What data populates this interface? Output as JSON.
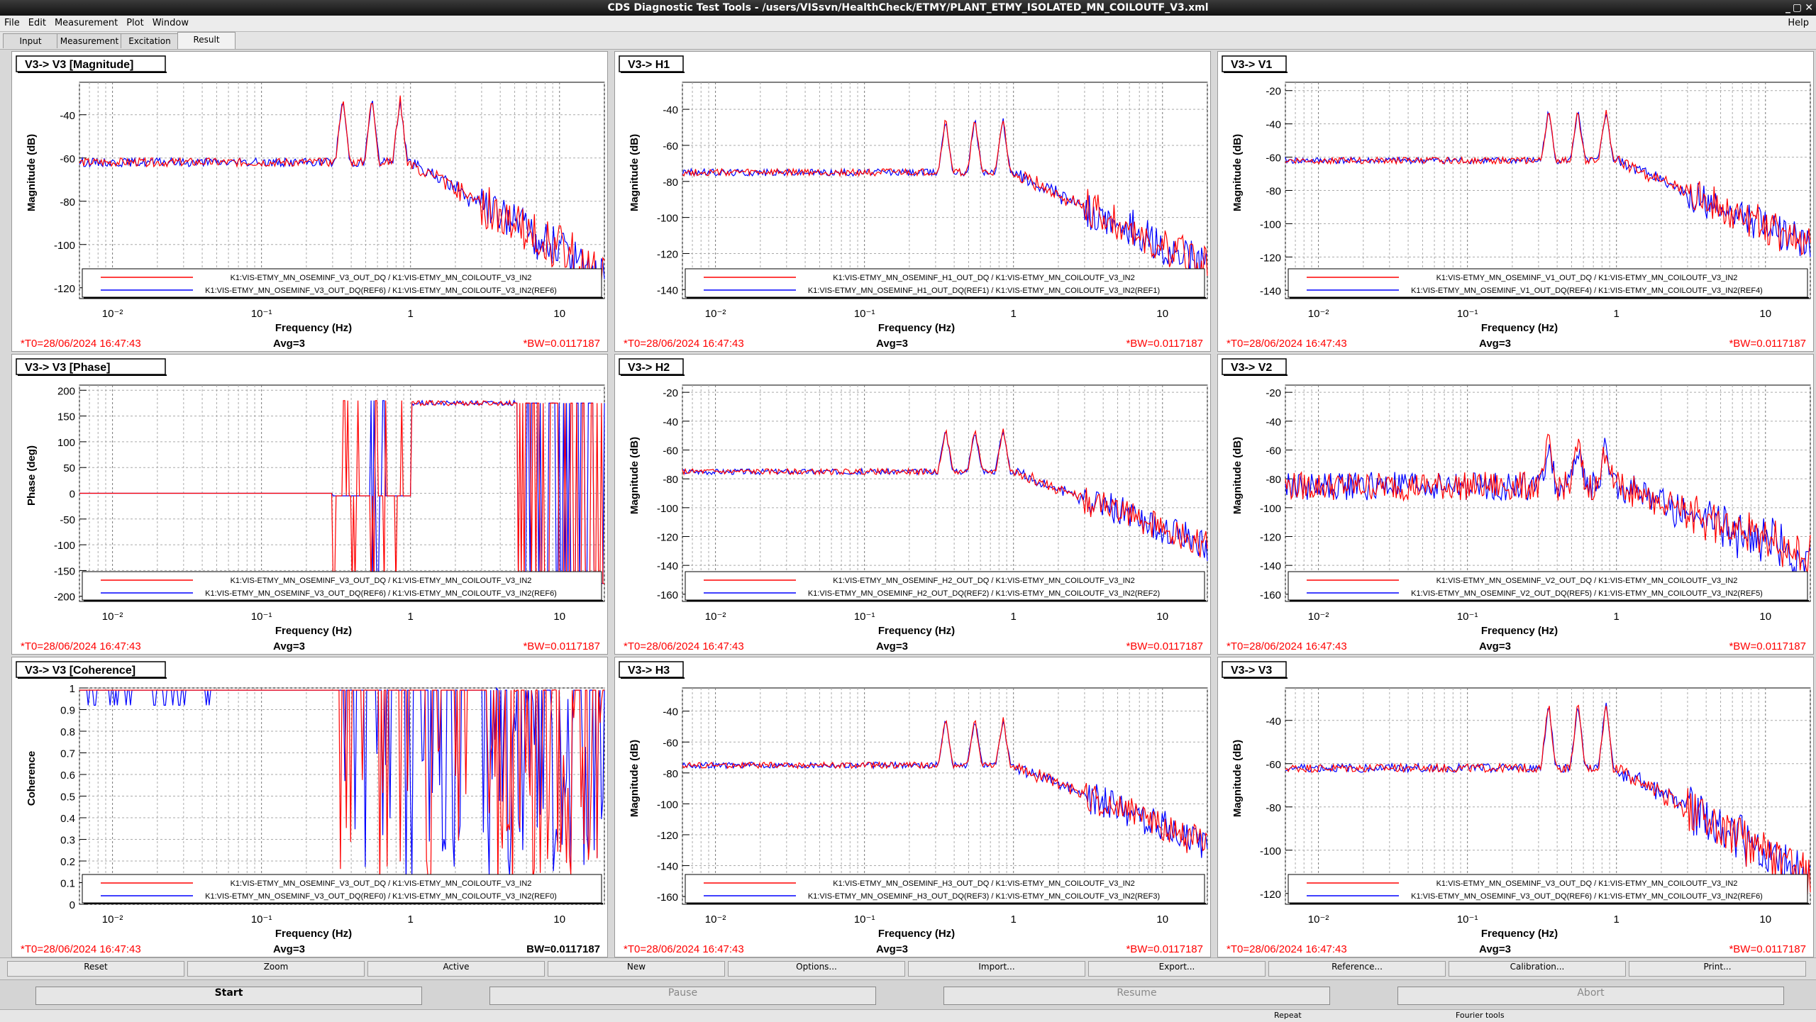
{
  "window": {
    "title": "CDS Diagnostic Test Tools - /users/VISsvn/HealthCheck/ETMY/PLANT_ETMY_ISOLATED_MN_COILOUTF_V3.xml",
    "controls": [
      "_",
      "▢",
      "✕"
    ]
  },
  "menu": {
    "items": [
      "File",
      "Edit",
      "Measurement",
      "Plot",
      "Window"
    ],
    "help": "Help"
  },
  "tabs": [
    {
      "label": "Input",
      "active": false
    },
    {
      "label": "Measurement",
      "active": false
    },
    {
      "label": "Excitation",
      "active": false
    },
    {
      "label": "Result",
      "active": true
    }
  ],
  "colors": {
    "series1": "#ff0000",
    "series2": "#0000ff",
    "status": "#ff0000"
  },
  "footer_common": {
    "t0": "*T0=28/06/2024 16:47:43",
    "avg": "Avg=3",
    "bw": "*BW=0.0117187",
    "bw_plain": "BW=0.0117187",
    "xlabel": "Frequency (Hz)",
    "x_ticks": [
      "10⁻²",
      "10⁻¹",
      "1",
      "10"
    ]
  },
  "panels": [
    {
      "title": "V3-> V3 [Magnitude]",
      "big": true,
      "ylabel": "Magnitude (dB)",
      "ylim": [
        -125,
        -25
      ],
      "yticks": [
        -40,
        -60,
        -80,
        -100,
        -120
      ],
      "legend": [
        "K1:VIS-ETMY_MN_OSEMINF_V3_OUT_DQ / K1:VIS-ETMY_MN_COILOUTF_V3_IN2",
        "K1:VIS-ETMY_MN_OSEMINF_V3_OUT_DQ(REF6) / K1:VIS-ETMY_MN_COILOUTF_V3_IN2(REF6)"
      ],
      "bw_key": "bw",
      "kind": "mag",
      "seed": 1,
      "chart_data": {
        "type": "line",
        "x_scale": "log",
        "xlim": [
          0.006,
          20
        ]
      }
    },
    {
      "title": "V3-> H1",
      "big": false,
      "ylabel": "Magnitude (dB)",
      "ylim": [
        -145,
        -25
      ],
      "yticks": [
        -40,
        -60,
        -80,
        -100,
        -120,
        -140
      ],
      "legend": [
        "K1:VIS-ETMY_MN_OSEMINF_H1_OUT_DQ / K1:VIS-ETMY_MN_COILOUTF_V3_IN2",
        "K1:VIS-ETMY_MN_OSEMINF_H1_OUT_DQ(REF1) / K1:VIS-ETMY_MN_COILOUTF_V3_IN2(REF1)"
      ],
      "bw_key": "bw",
      "kind": "cross",
      "seed": 2,
      "chart_data": {
        "type": "line",
        "x_scale": "log",
        "xlim": [
          0.006,
          20
        ]
      }
    },
    {
      "title": "V3-> V1",
      "big": false,
      "ylabel": "Magnitude (dB)",
      "ylim": [
        -145,
        -15
      ],
      "yticks": [
        -20,
        -40,
        -60,
        -80,
        -100,
        -120,
        -140
      ],
      "legend": [
        "K1:VIS-ETMY_MN_OSEMINF_V1_OUT_DQ / K1:VIS-ETMY_MN_COILOUTF_V3_IN2",
        "K1:VIS-ETMY_MN_OSEMINF_V1_OUT_DQ(REF4) / K1:VIS-ETMY_MN_COILOUTF_V3_IN2(REF4)"
      ],
      "bw_key": "bw",
      "kind": "mag2",
      "seed": 3,
      "chart_data": {
        "type": "line",
        "x_scale": "log",
        "xlim": [
          0.006,
          20
        ]
      }
    },
    {
      "title": "V3-> V3 [Phase]",
      "big": true,
      "ylabel": "Phase (deg)",
      "ylim": [
        -210,
        210
      ],
      "yticks": [
        200,
        150,
        100,
        50,
        0,
        -50,
        -100,
        -150,
        -200
      ],
      "legend": [
        "K1:VIS-ETMY_MN_OSEMINF_V3_OUT_DQ / K1:VIS-ETMY_MN_COILOUTF_V3_IN2",
        "K1:VIS-ETMY_MN_OSEMINF_V3_OUT_DQ(REF6) / K1:VIS-ETMY_MN_COILOUTF_V3_IN2(REF6)"
      ],
      "bw_key": "bw",
      "kind": "phase",
      "seed": 4,
      "chart_data": {
        "type": "line",
        "x_scale": "log",
        "xlim": [
          0.006,
          20
        ]
      }
    },
    {
      "title": "V3-> H2",
      "big": false,
      "ylabel": "Magnitude (dB)",
      "ylim": [
        -165,
        -15
      ],
      "yticks": [
        -20,
        -40,
        -60,
        -80,
        -100,
        -120,
        -140,
        -160
      ],
      "legend": [
        "K1:VIS-ETMY_MN_OSEMINF_H2_OUT_DQ / K1:VIS-ETMY_MN_COILOUTF_V3_IN2",
        "K1:VIS-ETMY_MN_OSEMINF_H2_OUT_DQ(REF2) / K1:VIS-ETMY_MN_COILOUTF_V3_IN2(REF2)"
      ],
      "bw_key": "bw",
      "kind": "cross",
      "seed": 5,
      "chart_data": {
        "type": "line",
        "x_scale": "log",
        "xlim": [
          0.006,
          20
        ]
      }
    },
    {
      "title": "V3-> V2",
      "big": false,
      "ylabel": "Magnitude (dB)",
      "ylim": [
        -165,
        -15
      ],
      "yticks": [
        -20,
        -40,
        -60,
        -80,
        -100,
        -120,
        -140,
        -160
      ],
      "legend": [
        "K1:VIS-ETMY_MN_OSEMINF_V2_OUT_DQ / K1:VIS-ETMY_MN_COILOUTF_V3_IN2",
        "K1:VIS-ETMY_MN_OSEMINF_V2_OUT_DQ(REF5) / K1:VIS-ETMY_MN_COILOUTF_V3_IN2(REF5)"
      ],
      "bw_key": "bw",
      "kind": "noisy",
      "seed": 6,
      "chart_data": {
        "type": "line",
        "x_scale": "log",
        "xlim": [
          0.006,
          20
        ]
      }
    },
    {
      "title": "V3-> V3 [Coherence]",
      "big": true,
      "ylabel": "Coherence",
      "ylim": [
        0,
        1.0
      ],
      "yticks": [
        1,
        0.9,
        0.8,
        0.7,
        0.6,
        0.5,
        0.4,
        0.3,
        0.2,
        0.1,
        0
      ],
      "legend": [
        "K1:VIS-ETMY_MN_OSEMINF_V3_OUT_DQ / K1:VIS-ETMY_MN_COILOUTF_V3_IN2",
        "K1:VIS-ETMY_MN_OSEMINF_V3_OUT_DQ(REF0) / K1:VIS-ETMY_MN_COILOUTF_V3_IN2(REF0)"
      ],
      "bw_key": "bw_plain",
      "kind": "coh",
      "seed": 7,
      "chart_data": {
        "type": "line",
        "x_scale": "log",
        "xlim": [
          0.006,
          20
        ]
      }
    },
    {
      "title": "V3-> H3",
      "big": false,
      "ylabel": "Magnitude (dB)",
      "ylim": [
        -165,
        -25
      ],
      "yticks": [
        -40,
        -60,
        -80,
        -100,
        -120,
        -140,
        -160
      ],
      "legend": [
        "K1:VIS-ETMY_MN_OSEMINF_H3_OUT_DQ / K1:VIS-ETMY_MN_COILOUTF_V3_IN2",
        "K1:VIS-ETMY_MN_OSEMINF_H3_OUT_DQ(REF3) / K1:VIS-ETMY_MN_COILOUTF_V3_IN2(REF3)"
      ],
      "bw_key": "bw",
      "kind": "cross",
      "seed": 8,
      "chart_data": {
        "type": "line",
        "x_scale": "log",
        "xlim": [
          0.006,
          20
        ]
      }
    },
    {
      "title": "V3-> V3",
      "big": false,
      "ylabel": "Magnitude (dB)",
      "ylim": [
        -125,
        -25
      ],
      "yticks": [
        -40,
        -60,
        -80,
        -100,
        -120
      ],
      "legend": [
        "K1:VIS-ETMY_MN_OSEMINF_V3_OUT_DQ / K1:VIS-ETMY_MN_COILOUTF_V3_IN2",
        "K1:VIS-ETMY_MN_OSEMINF_V3_OUT_DQ(REF6) / K1:VIS-ETMY_MN_COILOUTF_V3_IN2(REF6)"
      ],
      "bw_key": "bw",
      "kind": "mag",
      "seed": 9,
      "chart_data": {
        "type": "line",
        "x_scale": "log",
        "xlim": [
          0.006,
          20
        ]
      }
    }
  ],
  "buttons_row1": [
    "Reset",
    "Zoom",
    "Active",
    "New",
    "Options...",
    "Import...",
    "Export...",
    "Reference...",
    "Calibration...",
    "Print..."
  ],
  "buttons_row2": [
    {
      "label": "Start",
      "enabled": true
    },
    {
      "label": "Pause",
      "enabled": false
    },
    {
      "label": "Resume",
      "enabled": false
    },
    {
      "label": "Abort",
      "enabled": false
    }
  ],
  "status": {
    "repeat": "Repeat",
    "fourier": "Fourier tools"
  }
}
